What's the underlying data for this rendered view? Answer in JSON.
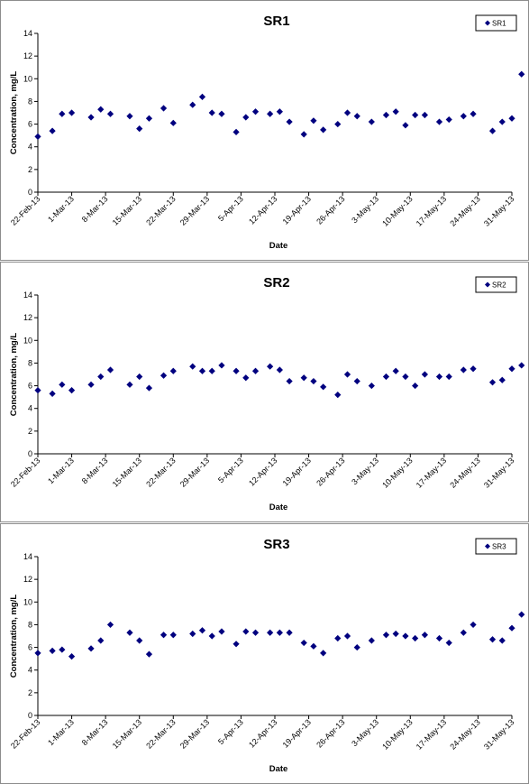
{
  "chart_data": [
    {
      "type": "scatter",
      "title": "SR1",
      "xlabel": "Date",
      "ylabel": "Concentration, mg/L",
      "ylim": [
        0,
        14
      ],
      "yticks": [
        "0",
        "2",
        "4",
        "6",
        "8",
        "10",
        "12",
        "14"
      ],
      "xlim": [
        "2013-02-22",
        "2013-05-31"
      ],
      "xticks": [
        "22-Feb-13",
        "1-Mar-13",
        "8-Mar-13",
        "15-Mar-13",
        "22-Mar-13",
        "29-Mar-13",
        "5-Apr-13",
        "12-Apr-13",
        "19-Apr-13",
        "26-Apr-13",
        "3-May-13",
        "10-May-13",
        "17-May-13",
        "24-May-13",
        "31-May-13"
      ],
      "legend": {
        "position": "top-right",
        "entries": [
          "SR1"
        ]
      },
      "marker_color": "#00007f",
      "series": [
        {
          "name": "SR1",
          "x": [
            "2013-02-22",
            "2013-02-25",
            "2013-02-27",
            "2013-03-01",
            "2013-03-05",
            "2013-03-07",
            "2013-03-09",
            "2013-03-13",
            "2013-03-15",
            "2013-03-17",
            "2013-03-20",
            "2013-03-22",
            "2013-03-26",
            "2013-03-28",
            "2013-03-30",
            "2013-04-01",
            "2013-04-04",
            "2013-04-06",
            "2013-04-08",
            "2013-04-11",
            "2013-04-13",
            "2013-04-15",
            "2013-04-18",
            "2013-04-20",
            "2013-04-22",
            "2013-04-25",
            "2013-04-27",
            "2013-04-29",
            "2013-05-02",
            "2013-05-05",
            "2013-05-07",
            "2013-05-09",
            "2013-05-11",
            "2013-05-13",
            "2013-05-16",
            "2013-05-18",
            "2013-05-21",
            "2013-05-23",
            "2013-05-27",
            "2013-05-29",
            "2013-05-31",
            "2013-06-02"
          ],
          "y": [
            4.9,
            5.4,
            6.9,
            7.0,
            6.6,
            7.3,
            6.9,
            6.7,
            5.6,
            6.5,
            7.4,
            6.1,
            7.7,
            8.4,
            7.0,
            6.9,
            5.3,
            6.6,
            7.1,
            6.9,
            7.1,
            6.2,
            5.1,
            6.3,
            5.5,
            6.0,
            7.0,
            6.7,
            6.2,
            6.8,
            7.1,
            5.9,
            6.8,
            6.8,
            6.2,
            6.4,
            6.7,
            6.9,
            5.4,
            6.2,
            6.5,
            10.4
          ]
        }
      ]
    },
    {
      "type": "scatter",
      "title": "SR2",
      "xlabel": "Date",
      "ylabel": "Concentration, mg/L",
      "ylim": [
        0,
        14
      ],
      "yticks": [
        "0",
        "2",
        "4",
        "6",
        "8",
        "10",
        "12",
        "14"
      ],
      "xlim": [
        "2013-02-22",
        "2013-05-31"
      ],
      "xticks": [
        "22-Feb-13",
        "1-Mar-13",
        "8-Mar-13",
        "15-Mar-13",
        "22-Mar-13",
        "29-Mar-13",
        "5-Apr-13",
        "12-Apr-13",
        "19-Apr-13",
        "26-Apr-13",
        "3-May-13",
        "10-May-13",
        "17-May-13",
        "24-May-13",
        "31-May-13"
      ],
      "legend": {
        "position": "top-right",
        "entries": [
          "SR2"
        ]
      },
      "marker_color": "#00007f",
      "series": [
        {
          "name": "SR2",
          "x": [
            "2013-02-22",
            "2013-02-25",
            "2013-02-27",
            "2013-03-01",
            "2013-03-05",
            "2013-03-07",
            "2013-03-09",
            "2013-03-13",
            "2013-03-15",
            "2013-03-17",
            "2013-03-20",
            "2013-03-22",
            "2013-03-26",
            "2013-03-28",
            "2013-03-30",
            "2013-04-01",
            "2013-04-04",
            "2013-04-06",
            "2013-04-08",
            "2013-04-11",
            "2013-04-13",
            "2013-04-15",
            "2013-04-18",
            "2013-04-20",
            "2013-04-22",
            "2013-04-25",
            "2013-04-27",
            "2013-04-29",
            "2013-05-02",
            "2013-05-05",
            "2013-05-07",
            "2013-05-09",
            "2013-05-11",
            "2013-05-13",
            "2013-05-16",
            "2013-05-18",
            "2013-05-21",
            "2013-05-23",
            "2013-05-27",
            "2013-05-29",
            "2013-05-31",
            "2013-06-02"
          ],
          "y": [
            5.6,
            5.3,
            6.1,
            5.6,
            6.1,
            6.8,
            7.4,
            6.1,
            6.8,
            5.8,
            6.9,
            7.3,
            7.7,
            7.3,
            7.3,
            7.8,
            7.3,
            6.7,
            7.3,
            7.7,
            7.4,
            6.4,
            6.7,
            6.4,
            5.9,
            5.2,
            7.0,
            6.4,
            6.0,
            6.8,
            7.3,
            6.8,
            6.0,
            7.0,
            6.8,
            6.8,
            7.4,
            7.5,
            6.3,
            6.5,
            7.5,
            7.8
          ]
        }
      ]
    },
    {
      "type": "scatter",
      "title": "SR3",
      "xlabel": "Date",
      "ylabel": "Concentration, mg/L",
      "ylim": [
        0,
        14
      ],
      "yticks": [
        "0",
        "2",
        "4",
        "6",
        "8",
        "10",
        "12",
        "14"
      ],
      "xlim": [
        "2013-02-22",
        "2013-05-31"
      ],
      "xticks": [
        "22-Feb-13",
        "1-Mar-13",
        "8-Mar-13",
        "15-Mar-13",
        "22-Mar-13",
        "29-Mar-13",
        "5-Apr-13",
        "12-Apr-13",
        "19-Apr-13",
        "26-Apr-13",
        "3-May-13",
        "10-May-13",
        "17-May-13",
        "24-May-13",
        "31-May-13"
      ],
      "legend": {
        "position": "top-right",
        "entries": [
          "SR3"
        ]
      },
      "marker_color": "#00007f",
      "series": [
        {
          "name": "SR3",
          "x": [
            "2013-02-22",
            "2013-02-25",
            "2013-02-27",
            "2013-03-01",
            "2013-03-05",
            "2013-03-07",
            "2013-03-09",
            "2013-03-13",
            "2013-03-15",
            "2013-03-17",
            "2013-03-20",
            "2013-03-22",
            "2013-03-26",
            "2013-03-28",
            "2013-03-30",
            "2013-04-01",
            "2013-04-04",
            "2013-04-06",
            "2013-04-08",
            "2013-04-11",
            "2013-04-13",
            "2013-04-15",
            "2013-04-18",
            "2013-04-20",
            "2013-04-22",
            "2013-04-25",
            "2013-04-27",
            "2013-04-29",
            "2013-05-02",
            "2013-05-05",
            "2013-05-07",
            "2013-05-09",
            "2013-05-11",
            "2013-05-13",
            "2013-05-16",
            "2013-05-18",
            "2013-05-21",
            "2013-05-23",
            "2013-05-27",
            "2013-05-29",
            "2013-05-31",
            "2013-06-02"
          ],
          "y": [
            5.5,
            5.7,
            5.8,
            5.2,
            5.9,
            6.6,
            8.0,
            7.3,
            6.6,
            5.4,
            7.1,
            7.1,
            7.2,
            7.5,
            7.0,
            7.4,
            6.3,
            7.4,
            7.3,
            7.3,
            7.3,
            7.3,
            6.4,
            6.1,
            5.5,
            6.8,
            7.0,
            6.0,
            6.6,
            7.1,
            7.2,
            7.0,
            6.8,
            7.1,
            6.8,
            6.4,
            7.3,
            8.0,
            6.7,
            6.6,
            7.7,
            8.9
          ]
        }
      ]
    }
  ]
}
